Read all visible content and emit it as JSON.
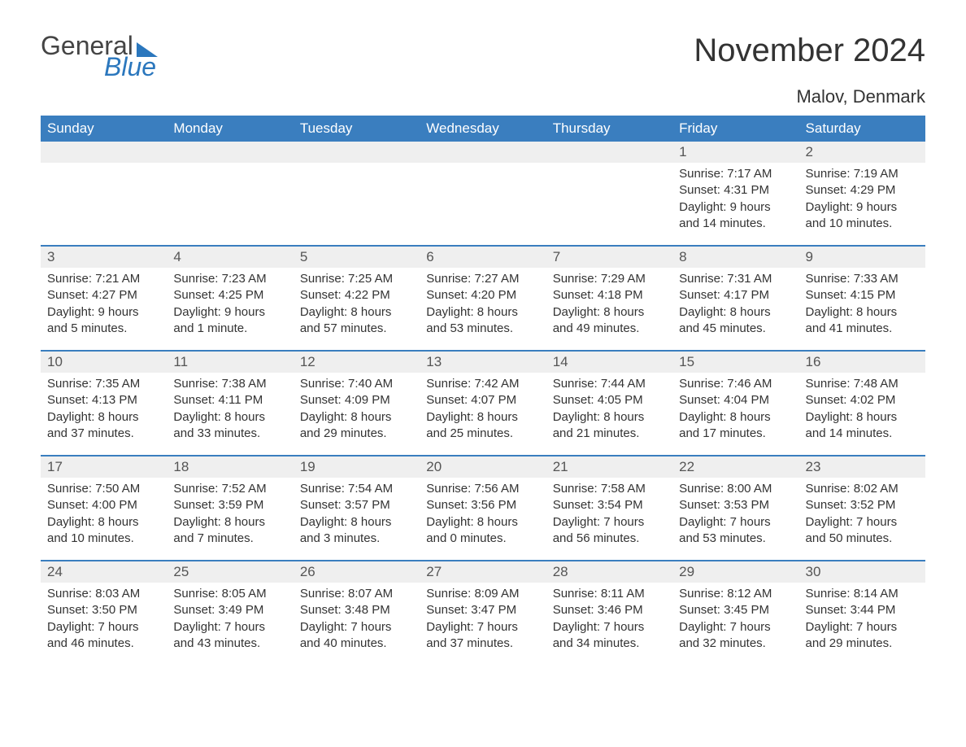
{
  "brand": {
    "word1": "General",
    "word2": "Blue",
    "accent_color": "#2b77bd"
  },
  "title": "November 2024",
  "location": "Malov, Denmark",
  "colors": {
    "header_bg": "#3a7ebf",
    "header_text": "#ffffff",
    "daynum_bg": "#efefef",
    "daynum_text": "#555555",
    "body_text": "#333333",
    "page_bg": "#ffffff",
    "row_sep": "#3a7ebf"
  },
  "fonts": {
    "title_size": 40,
    "location_size": 22,
    "header_size": 17,
    "daynum_size": 17,
    "body_size": 15
  },
  "dayHeaders": [
    "Sunday",
    "Monday",
    "Tuesday",
    "Wednesday",
    "Thursday",
    "Friday",
    "Saturday"
  ],
  "weeks": [
    [
      null,
      null,
      null,
      null,
      null,
      {
        "num": "1",
        "sunrise": "Sunrise: 7:17 AM",
        "sunset": "Sunset: 4:31 PM",
        "daylight1": "Daylight: 9 hours",
        "daylight2": "and 14 minutes."
      },
      {
        "num": "2",
        "sunrise": "Sunrise: 7:19 AM",
        "sunset": "Sunset: 4:29 PM",
        "daylight1": "Daylight: 9 hours",
        "daylight2": "and 10 minutes."
      }
    ],
    [
      {
        "num": "3",
        "sunrise": "Sunrise: 7:21 AM",
        "sunset": "Sunset: 4:27 PM",
        "daylight1": "Daylight: 9 hours",
        "daylight2": "and 5 minutes."
      },
      {
        "num": "4",
        "sunrise": "Sunrise: 7:23 AM",
        "sunset": "Sunset: 4:25 PM",
        "daylight1": "Daylight: 9 hours",
        "daylight2": "and 1 minute."
      },
      {
        "num": "5",
        "sunrise": "Sunrise: 7:25 AM",
        "sunset": "Sunset: 4:22 PM",
        "daylight1": "Daylight: 8 hours",
        "daylight2": "and 57 minutes."
      },
      {
        "num": "6",
        "sunrise": "Sunrise: 7:27 AM",
        "sunset": "Sunset: 4:20 PM",
        "daylight1": "Daylight: 8 hours",
        "daylight2": "and 53 minutes."
      },
      {
        "num": "7",
        "sunrise": "Sunrise: 7:29 AM",
        "sunset": "Sunset: 4:18 PM",
        "daylight1": "Daylight: 8 hours",
        "daylight2": "and 49 minutes."
      },
      {
        "num": "8",
        "sunrise": "Sunrise: 7:31 AM",
        "sunset": "Sunset: 4:17 PM",
        "daylight1": "Daylight: 8 hours",
        "daylight2": "and 45 minutes."
      },
      {
        "num": "9",
        "sunrise": "Sunrise: 7:33 AM",
        "sunset": "Sunset: 4:15 PM",
        "daylight1": "Daylight: 8 hours",
        "daylight2": "and 41 minutes."
      }
    ],
    [
      {
        "num": "10",
        "sunrise": "Sunrise: 7:35 AM",
        "sunset": "Sunset: 4:13 PM",
        "daylight1": "Daylight: 8 hours",
        "daylight2": "and 37 minutes."
      },
      {
        "num": "11",
        "sunrise": "Sunrise: 7:38 AM",
        "sunset": "Sunset: 4:11 PM",
        "daylight1": "Daylight: 8 hours",
        "daylight2": "and 33 minutes."
      },
      {
        "num": "12",
        "sunrise": "Sunrise: 7:40 AM",
        "sunset": "Sunset: 4:09 PM",
        "daylight1": "Daylight: 8 hours",
        "daylight2": "and 29 minutes."
      },
      {
        "num": "13",
        "sunrise": "Sunrise: 7:42 AM",
        "sunset": "Sunset: 4:07 PM",
        "daylight1": "Daylight: 8 hours",
        "daylight2": "and 25 minutes."
      },
      {
        "num": "14",
        "sunrise": "Sunrise: 7:44 AM",
        "sunset": "Sunset: 4:05 PM",
        "daylight1": "Daylight: 8 hours",
        "daylight2": "and 21 minutes."
      },
      {
        "num": "15",
        "sunrise": "Sunrise: 7:46 AM",
        "sunset": "Sunset: 4:04 PM",
        "daylight1": "Daylight: 8 hours",
        "daylight2": "and 17 minutes."
      },
      {
        "num": "16",
        "sunrise": "Sunrise: 7:48 AM",
        "sunset": "Sunset: 4:02 PM",
        "daylight1": "Daylight: 8 hours",
        "daylight2": "and 14 minutes."
      }
    ],
    [
      {
        "num": "17",
        "sunrise": "Sunrise: 7:50 AM",
        "sunset": "Sunset: 4:00 PM",
        "daylight1": "Daylight: 8 hours",
        "daylight2": "and 10 minutes."
      },
      {
        "num": "18",
        "sunrise": "Sunrise: 7:52 AM",
        "sunset": "Sunset: 3:59 PM",
        "daylight1": "Daylight: 8 hours",
        "daylight2": "and 7 minutes."
      },
      {
        "num": "19",
        "sunrise": "Sunrise: 7:54 AM",
        "sunset": "Sunset: 3:57 PM",
        "daylight1": "Daylight: 8 hours",
        "daylight2": "and 3 minutes."
      },
      {
        "num": "20",
        "sunrise": "Sunrise: 7:56 AM",
        "sunset": "Sunset: 3:56 PM",
        "daylight1": "Daylight: 8 hours",
        "daylight2": "and 0 minutes."
      },
      {
        "num": "21",
        "sunrise": "Sunrise: 7:58 AM",
        "sunset": "Sunset: 3:54 PM",
        "daylight1": "Daylight: 7 hours",
        "daylight2": "and 56 minutes."
      },
      {
        "num": "22",
        "sunrise": "Sunrise: 8:00 AM",
        "sunset": "Sunset: 3:53 PM",
        "daylight1": "Daylight: 7 hours",
        "daylight2": "and 53 minutes."
      },
      {
        "num": "23",
        "sunrise": "Sunrise: 8:02 AM",
        "sunset": "Sunset: 3:52 PM",
        "daylight1": "Daylight: 7 hours",
        "daylight2": "and 50 minutes."
      }
    ],
    [
      {
        "num": "24",
        "sunrise": "Sunrise: 8:03 AM",
        "sunset": "Sunset: 3:50 PM",
        "daylight1": "Daylight: 7 hours",
        "daylight2": "and 46 minutes."
      },
      {
        "num": "25",
        "sunrise": "Sunrise: 8:05 AM",
        "sunset": "Sunset: 3:49 PM",
        "daylight1": "Daylight: 7 hours",
        "daylight2": "and 43 minutes."
      },
      {
        "num": "26",
        "sunrise": "Sunrise: 8:07 AM",
        "sunset": "Sunset: 3:48 PM",
        "daylight1": "Daylight: 7 hours",
        "daylight2": "and 40 minutes."
      },
      {
        "num": "27",
        "sunrise": "Sunrise: 8:09 AM",
        "sunset": "Sunset: 3:47 PM",
        "daylight1": "Daylight: 7 hours",
        "daylight2": "and 37 minutes."
      },
      {
        "num": "28",
        "sunrise": "Sunrise: 8:11 AM",
        "sunset": "Sunset: 3:46 PM",
        "daylight1": "Daylight: 7 hours",
        "daylight2": "and 34 minutes."
      },
      {
        "num": "29",
        "sunrise": "Sunrise: 8:12 AM",
        "sunset": "Sunset: 3:45 PM",
        "daylight1": "Daylight: 7 hours",
        "daylight2": "and 32 minutes."
      },
      {
        "num": "30",
        "sunrise": "Sunrise: 8:14 AM",
        "sunset": "Sunset: 3:44 PM",
        "daylight1": "Daylight: 7 hours",
        "daylight2": "and 29 minutes."
      }
    ]
  ]
}
